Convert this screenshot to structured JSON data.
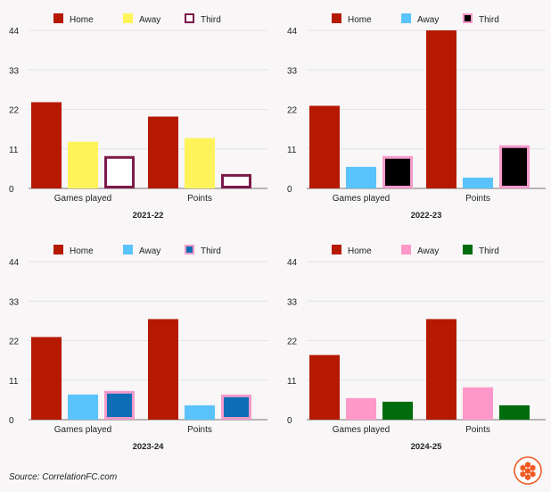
{
  "chart_data": [
    {
      "type": "bar",
      "title": "2021-22",
      "categories": [
        "Games played",
        "Points"
      ],
      "yticks": [
        0,
        11,
        22,
        33,
        44
      ],
      "ylim": [
        0,
        44
      ],
      "legend_position": "top",
      "grid": true,
      "series": [
        {
          "name": "Home",
          "values": [
            24,
            20
          ],
          "fill": "#b51a00",
          "stroke": "#b51a00"
        },
        {
          "name": "Away",
          "values": [
            13,
            14
          ],
          "fill": "#fff35b",
          "stroke": "#fff35b"
        },
        {
          "name": "Third",
          "values": [
            9,
            4
          ],
          "fill": "#ffffff",
          "stroke": "#7c1a4a"
        }
      ]
    },
    {
      "type": "bar",
      "title": "2022-23",
      "categories": [
        "Games played",
        "Points"
      ],
      "yticks": [
        0,
        11,
        22,
        33,
        44
      ],
      "ylim": [
        0,
        44
      ],
      "legend_position": "top",
      "grid": true,
      "series": [
        {
          "name": "Home",
          "values": [
            23,
            44
          ],
          "fill": "#b51a00",
          "stroke": "#b51a00"
        },
        {
          "name": "Away",
          "values": [
            6,
            3
          ],
          "fill": "#5ac3fb",
          "stroke": "#5ac3fb"
        },
        {
          "name": "Third",
          "values": [
            9,
            12
          ],
          "fill": "#000000",
          "stroke": "#f59acb"
        }
      ]
    },
    {
      "type": "bar",
      "title": "2023-24",
      "categories": [
        "Games played",
        "Points"
      ],
      "yticks": [
        0,
        11,
        22,
        33,
        44
      ],
      "ylim": [
        0,
        44
      ],
      "legend_position": "top",
      "grid": true,
      "series": [
        {
          "name": "Home",
          "values": [
            23,
            28
          ],
          "fill": "#b51a00",
          "stroke": "#b51a00"
        },
        {
          "name": "Away",
          "values": [
            7,
            4
          ],
          "fill": "#5ac3fb",
          "stroke": "#5ac3fb"
        },
        {
          "name": "Third",
          "values": [
            8,
            7
          ],
          "fill": "#0d6eb5",
          "stroke": "#f59acb"
        }
      ]
    },
    {
      "type": "bar",
      "title": "2024-25",
      "categories": [
        "Games played",
        "Points"
      ],
      "yticks": [
        0,
        11,
        22,
        33,
        44
      ],
      "ylim": [
        0,
        44
      ],
      "legend_position": "top",
      "grid": true,
      "series": [
        {
          "name": "Home",
          "values": [
            18,
            28
          ],
          "fill": "#b51a00",
          "stroke": "#b51a00"
        },
        {
          "name": "Away",
          "values": [
            6,
            9
          ],
          "fill": "#fe98c9",
          "stroke": "#fe98c9"
        },
        {
          "name": "Third",
          "values": [
            5,
            4
          ],
          "fill": "#006c0e",
          "stroke": "#006c0e"
        }
      ]
    }
  ],
  "source": "Source: CorrelationFC.com",
  "logo_icon": "hexagon-logo-icon",
  "colors": {
    "grid": "#e3e3e3",
    "axis": "#777777",
    "text": "#222222",
    "logo": "#f05a22"
  }
}
